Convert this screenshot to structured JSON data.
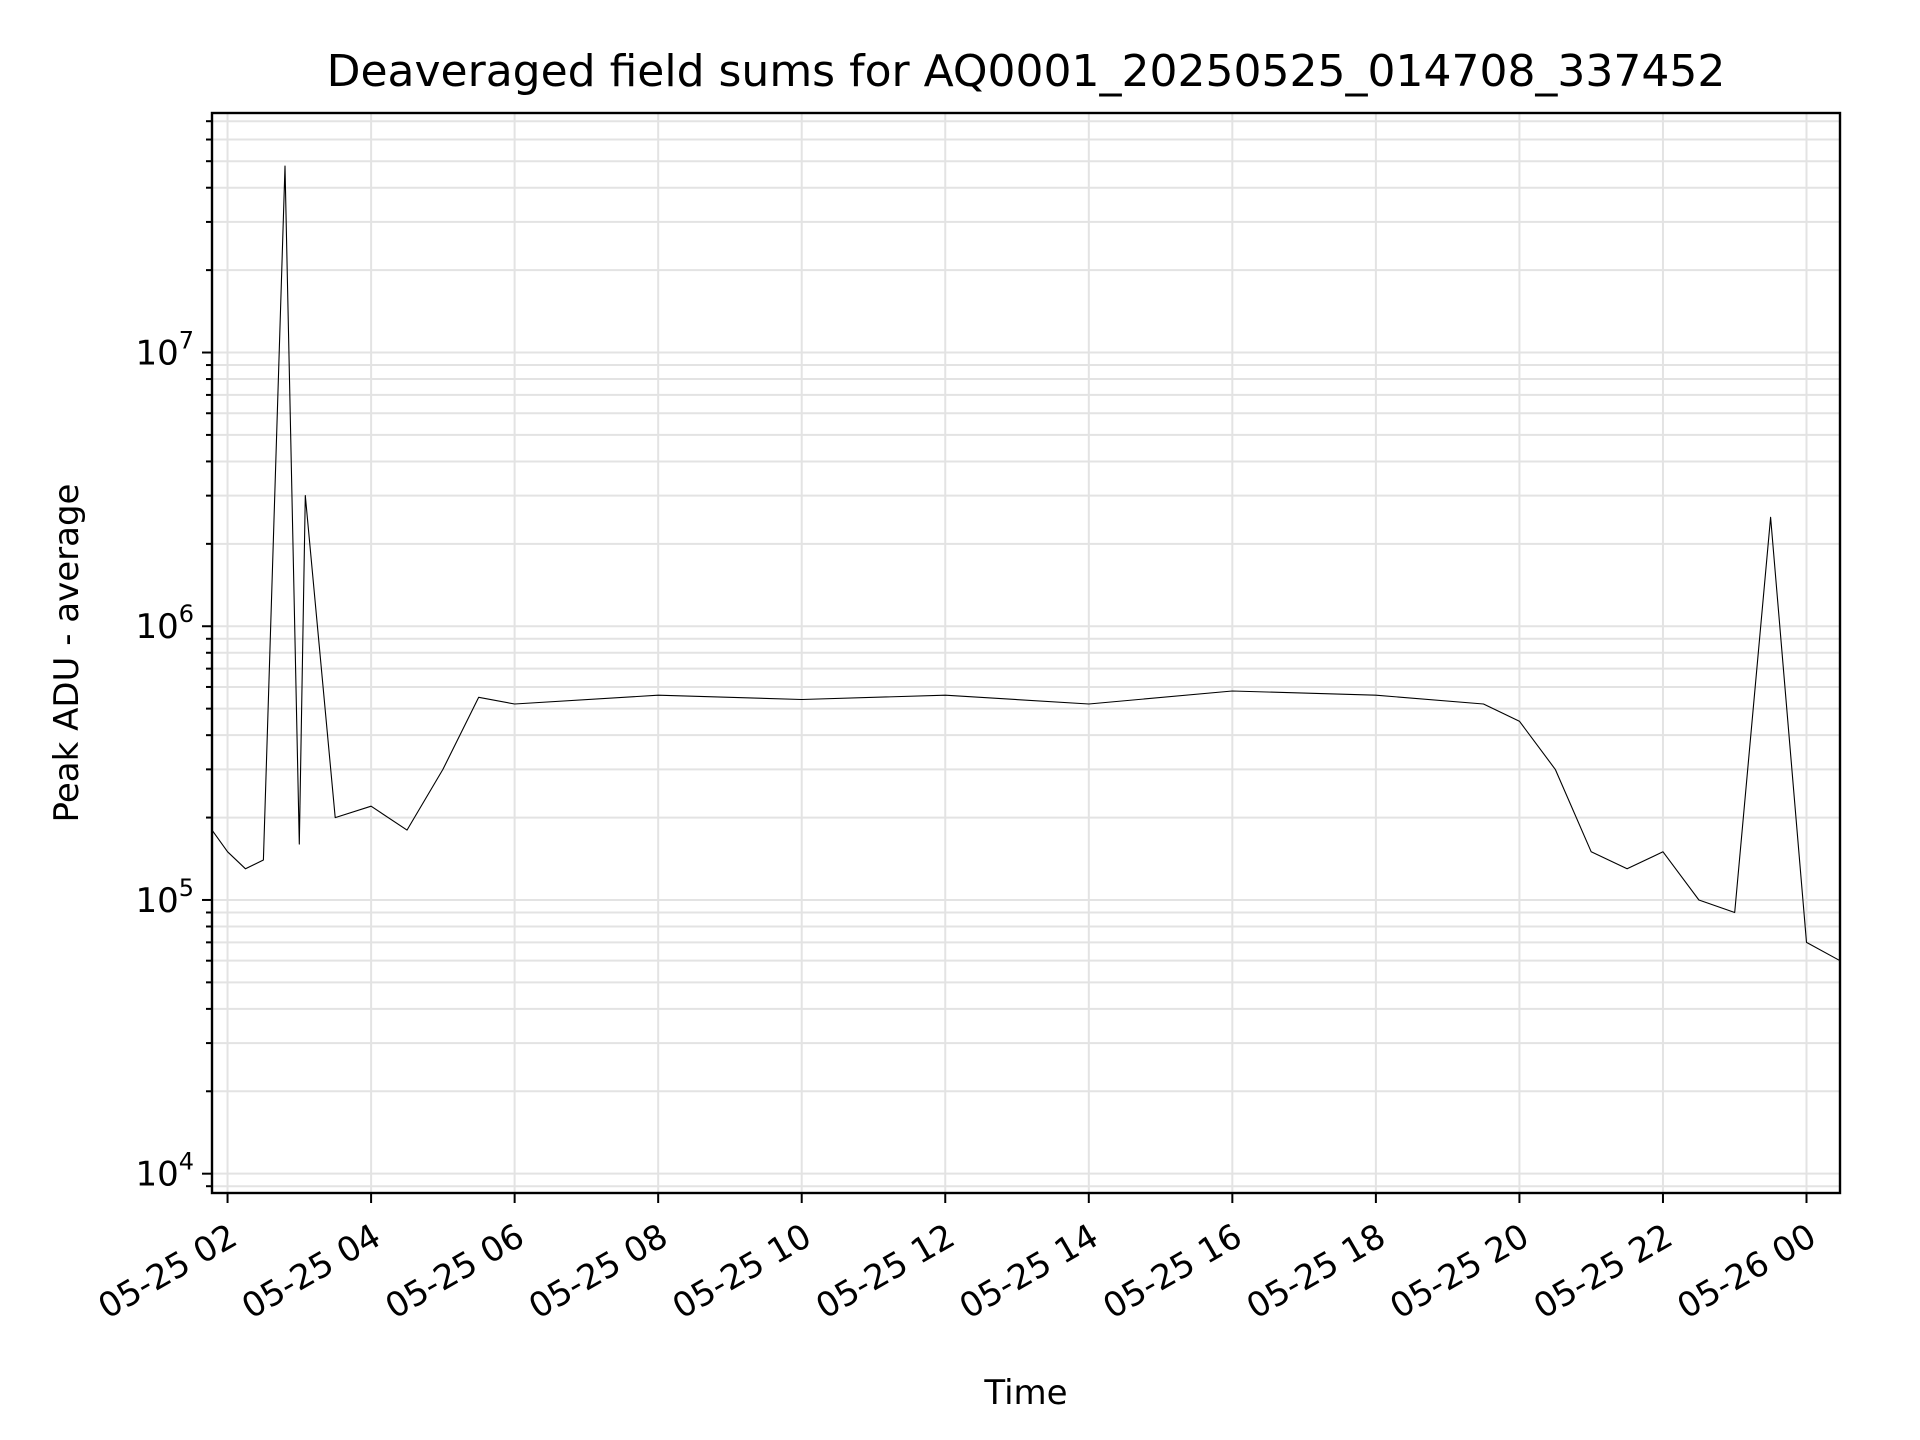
{
  "chart_data": {
    "type": "line",
    "title": "Deaveraged field sums for AQ0001_20250525_014708_337452",
    "xlabel": "Time",
    "ylabel": "Peak ADU - average",
    "y_scale": "log",
    "ylim": [
      8500,
      75000000
    ],
    "xlim": [
      "2025-05-25 01:47",
      "2025-05-26 00:28"
    ],
    "grid": true,
    "line_color": "#000000",
    "x_ticks": [
      {
        "value": "2025-05-25 02:00",
        "label": "05-25 02"
      },
      {
        "value": "2025-05-25 04:00",
        "label": "05-25 04"
      },
      {
        "value": "2025-05-25 06:00",
        "label": "05-25 06"
      },
      {
        "value": "2025-05-25 08:00",
        "label": "05-25 08"
      },
      {
        "value": "2025-05-25 10:00",
        "label": "05-25 10"
      },
      {
        "value": "2025-05-25 12:00",
        "label": "05-25 12"
      },
      {
        "value": "2025-05-25 14:00",
        "label": "05-25 14"
      },
      {
        "value": "2025-05-25 16:00",
        "label": "05-25 16"
      },
      {
        "value": "2025-05-25 18:00",
        "label": "05-25 18"
      },
      {
        "value": "2025-05-25 20:00",
        "label": "05-25 20"
      },
      {
        "value": "2025-05-25 22:00",
        "label": "05-25 22"
      },
      {
        "value": "2025-05-26 00:00",
        "label": "05-26 00"
      }
    ],
    "y_ticks": [
      {
        "value": 10000,
        "base": "10",
        "exp": "4"
      },
      {
        "value": 100000,
        "base": "10",
        "exp": "5"
      },
      {
        "value": 1000000,
        "base": "10",
        "exp": "6"
      },
      {
        "value": 10000000,
        "base": "10",
        "exp": "7"
      }
    ],
    "series": [
      {
        "points": [
          {
            "x": "2025-05-25 01:47",
            "y": 180000
          },
          {
            "x": "2025-05-25 02:00",
            "y": 150000
          },
          {
            "x": "2025-05-25 02:15",
            "y": 130000
          },
          {
            "x": "2025-05-25 02:30",
            "y": 140000
          },
          {
            "x": "2025-05-25 02:48",
            "y": 48000000
          },
          {
            "x": "2025-05-25 03:00",
            "y": 160000
          },
          {
            "x": "2025-05-25 03:05",
            "y": 3000000
          },
          {
            "x": "2025-05-25 03:30",
            "y": 200000
          },
          {
            "x": "2025-05-25 04:00",
            "y": 220000
          },
          {
            "x": "2025-05-25 04:30",
            "y": 180000
          },
          {
            "x": "2025-05-25 05:00",
            "y": 300000
          },
          {
            "x": "2025-05-25 05:30",
            "y": 550000
          },
          {
            "x": "2025-05-25 06:00",
            "y": 520000
          },
          {
            "x": "2025-05-25 08:00",
            "y": 560000
          },
          {
            "x": "2025-05-25 10:00",
            "y": 540000
          },
          {
            "x": "2025-05-25 12:00",
            "y": 560000
          },
          {
            "x": "2025-05-25 14:00",
            "y": 520000
          },
          {
            "x": "2025-05-25 16:00",
            "y": 580000
          },
          {
            "x": "2025-05-25 18:00",
            "y": 560000
          },
          {
            "x": "2025-05-25 19:30",
            "y": 520000
          },
          {
            "x": "2025-05-25 20:00",
            "y": 450000
          },
          {
            "x": "2025-05-25 20:30",
            "y": 300000
          },
          {
            "x": "2025-05-25 21:00",
            "y": 150000
          },
          {
            "x": "2025-05-25 21:30",
            "y": 130000
          },
          {
            "x": "2025-05-25 22:00",
            "y": 150000
          },
          {
            "x": "2025-05-25 22:30",
            "y": 100000
          },
          {
            "x": "2025-05-25 23:00",
            "y": 90000
          },
          {
            "x": "2025-05-25 23:30",
            "y": 2500000
          },
          {
            "x": "2025-05-26 00:00",
            "y": 70000
          },
          {
            "x": "2025-05-26 00:28",
            "y": 60000
          }
        ]
      }
    ]
  }
}
